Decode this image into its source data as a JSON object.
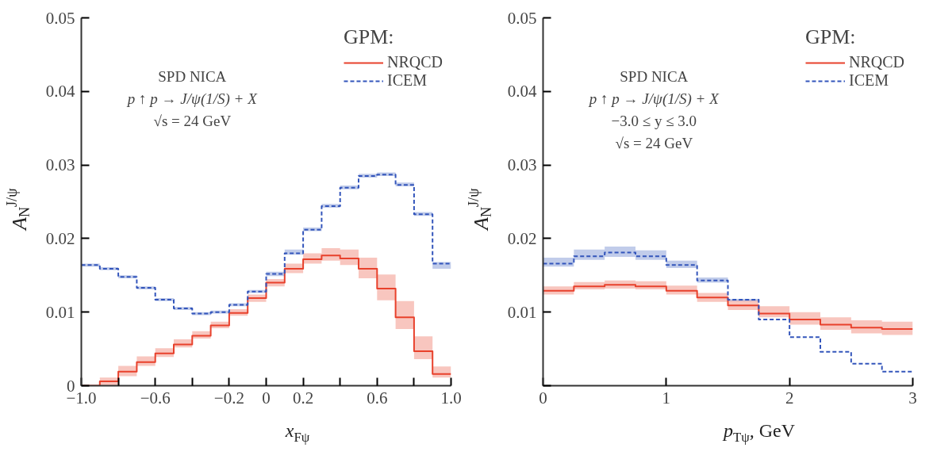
{
  "chart_data": [
    {
      "type": "step",
      "xlabel": "x$_{Fψ}$",
      "ylabel": "A$_{N}$$^{J/ψ}$",
      "legend_title": "GPM:",
      "legend": "top right",
      "grid": false,
      "annotations": [
        "SPD NICA",
        "p ↑ p → J/ψ(1/S) + X",
        "√s = 24 GeV"
      ],
      "xlim": [
        -1.0,
        1.0
      ],
      "ylim": [
        0,
        0.05
      ],
      "xticks": [
        {
          "value": -1.0,
          "label": "−1.0"
        },
        {
          "value": -0.8,
          "label": null
        },
        {
          "value": -0.6,
          "label": "−0.6"
        },
        {
          "value": -0.4,
          "label": null
        },
        {
          "value": -0.2,
          "label": "−0.2"
        },
        0,
        {
          "value": 0.2,
          "label": "0.2"
        },
        {
          "value": 0.4,
          "label": null
        },
        {
          "value": 0.6,
          "label": "0.6"
        },
        {
          "value": 0.8,
          "label": null
        },
        {
          "value": 1.0,
          "label": "1.0"
        }
      ],
      "yticks": [
        0,
        0.01,
        0.02,
        0.03,
        0.04,
        0.05
      ],
      "x": [
        -1.0,
        -0.9,
        -0.8,
        -0.7,
        -0.6,
        -0.5,
        -0.4,
        -0.3,
        -0.2,
        -0.1,
        0,
        0.1,
        0.2,
        0.3,
        0.4,
        0.5,
        0.6,
        0.7,
        0.8,
        0.9,
        1.0
      ],
      "series": [
        {
          "name": "NRQCD",
          "color": "#e8412c",
          "line_style": "solid",
          "values": [
            0,
            0.0006,
            0.0019,
            0.0032,
            0.0044,
            0.0056,
            0.0068,
            0.0082,
            0.0099,
            0.0119,
            0.014,
            0.0159,
            0.0172,
            0.0177,
            0.0173,
            0.0159,
            0.0132,
            0.0093,
            0.0047,
            0.0016,
            0.0016
          ],
          "lower": [
            0,
            0,
            0.0013,
            0.0027,
            0.0039,
            0.0052,
            0.0064,
            0.0078,
            0.0095,
            0.0114,
            0.0135,
            0.0153,
            0.0166,
            0.017,
            0.0164,
            0.0146,
            0.0116,
            0.0077,
            0.0036,
            0.0011,
            0.0011
          ],
          "upper": [
            0,
            0.0011,
            0.0027,
            0.004,
            0.0051,
            0.0063,
            0.0074,
            0.0087,
            0.0104,
            0.0124,
            0.0145,
            0.0166,
            0.018,
            0.0187,
            0.0185,
            0.0174,
            0.0151,
            0.0115,
            0.0067,
            0.0026,
            0.0026
          ]
        },
        {
          "name": "ICEM",
          "color": "#3355bb",
          "line_style": "dashed",
          "values": [
            0.0164,
            0.0159,
            0.0148,
            0.0133,
            0.0117,
            0.0105,
            0.0098,
            0.01,
            0.011,
            0.0128,
            0.0152,
            0.018,
            0.0212,
            0.0244,
            0.0269,
            0.0285,
            0.0287,
            0.0273,
            0.0233,
            0.0166,
            0.0166
          ],
          "lower": [
            0.0162,
            0.0157,
            0.0146,
            0.0131,
            0.0115,
            0.0103,
            0.0096,
            0.0098,
            0.0108,
            0.0126,
            0.0149,
            0.0178,
            0.021,
            0.0242,
            0.0267,
            0.0283,
            0.0285,
            0.0271,
            0.0231,
            0.0159,
            0.0159
          ],
          "upper": [
            0.0166,
            0.0161,
            0.015,
            0.0135,
            0.0119,
            0.0107,
            0.01,
            0.0102,
            0.0112,
            0.013,
            0.0155,
            0.0185,
            0.0215,
            0.0247,
            0.0272,
            0.0288,
            0.029,
            0.0276,
            0.0236,
            0.0168,
            0.0168
          ]
        }
      ]
    },
    {
      "type": "step",
      "xlabel": "p$_{Tψ}$, GeV",
      "ylabel": "A$_{N}$$^{J/ψ}$",
      "legend_title": "GPM:",
      "legend": "top right",
      "grid": false,
      "annotations": [
        "SPD NICA",
        "p ↑ p → J/ψ(1/S) + X",
        "−3.0 ≤ y ≤ 3.0",
        "√s = 24 GeV"
      ],
      "xlim": [
        0,
        3
      ],
      "ylim": [
        0,
        0.05
      ],
      "xticks": [
        0,
        1,
        2,
        3
      ],
      "yticks": [
        {
          "value": 0,
          "label": null
        },
        0.01,
        0.02,
        0.03,
        0.04,
        0.05
      ],
      "x": [
        0,
        0.25,
        0.5,
        0.75,
        1.0,
        1.25,
        1.5,
        1.75,
        2.0,
        2.25,
        2.5,
        2.75,
        3.0
      ],
      "series": [
        {
          "name": "NRQCD",
          "color": "#e8412c",
          "line_style": "solid",
          "values": [
            0.0129,
            0.0135,
            0.0137,
            0.0135,
            0.0129,
            0.012,
            0.0109,
            0.0098,
            0.009,
            0.0083,
            0.0079,
            0.0077,
            0.0077
          ],
          "lower": [
            0.0124,
            0.0131,
            0.0132,
            0.0131,
            0.0124,
            0.0114,
            0.0103,
            0.0093,
            0.0083,
            0.0076,
            0.0071,
            0.0069,
            0.0069
          ],
          "upper": [
            0.0135,
            0.0141,
            0.0143,
            0.0142,
            0.0136,
            0.0126,
            0.0116,
            0.0108,
            0.01,
            0.0093,
            0.0089,
            0.0087,
            0.0087
          ]
        },
        {
          "name": "ICEM",
          "color": "#3355bb",
          "line_style": "dashed",
          "values": [
            0.0166,
            0.0176,
            0.0181,
            0.0176,
            0.0164,
            0.0143,
            0.0117,
            0.009,
            0.0066,
            0.0046,
            0.003,
            0.0019,
            0.0019
          ],
          "lower": [
            0.0162,
            0.0171,
            0.0175,
            0.0171,
            0.016,
            0.014,
            0.0115,
            0.0115,
            null,
            null,
            null,
            null,
            null
          ],
          "upper": [
            0.0174,
            0.0185,
            0.0189,
            0.0184,
            0.017,
            0.0147,
            0.0118,
            0.0118,
            null,
            null,
            null,
            null,
            null
          ]
        }
      ]
    }
  ]
}
